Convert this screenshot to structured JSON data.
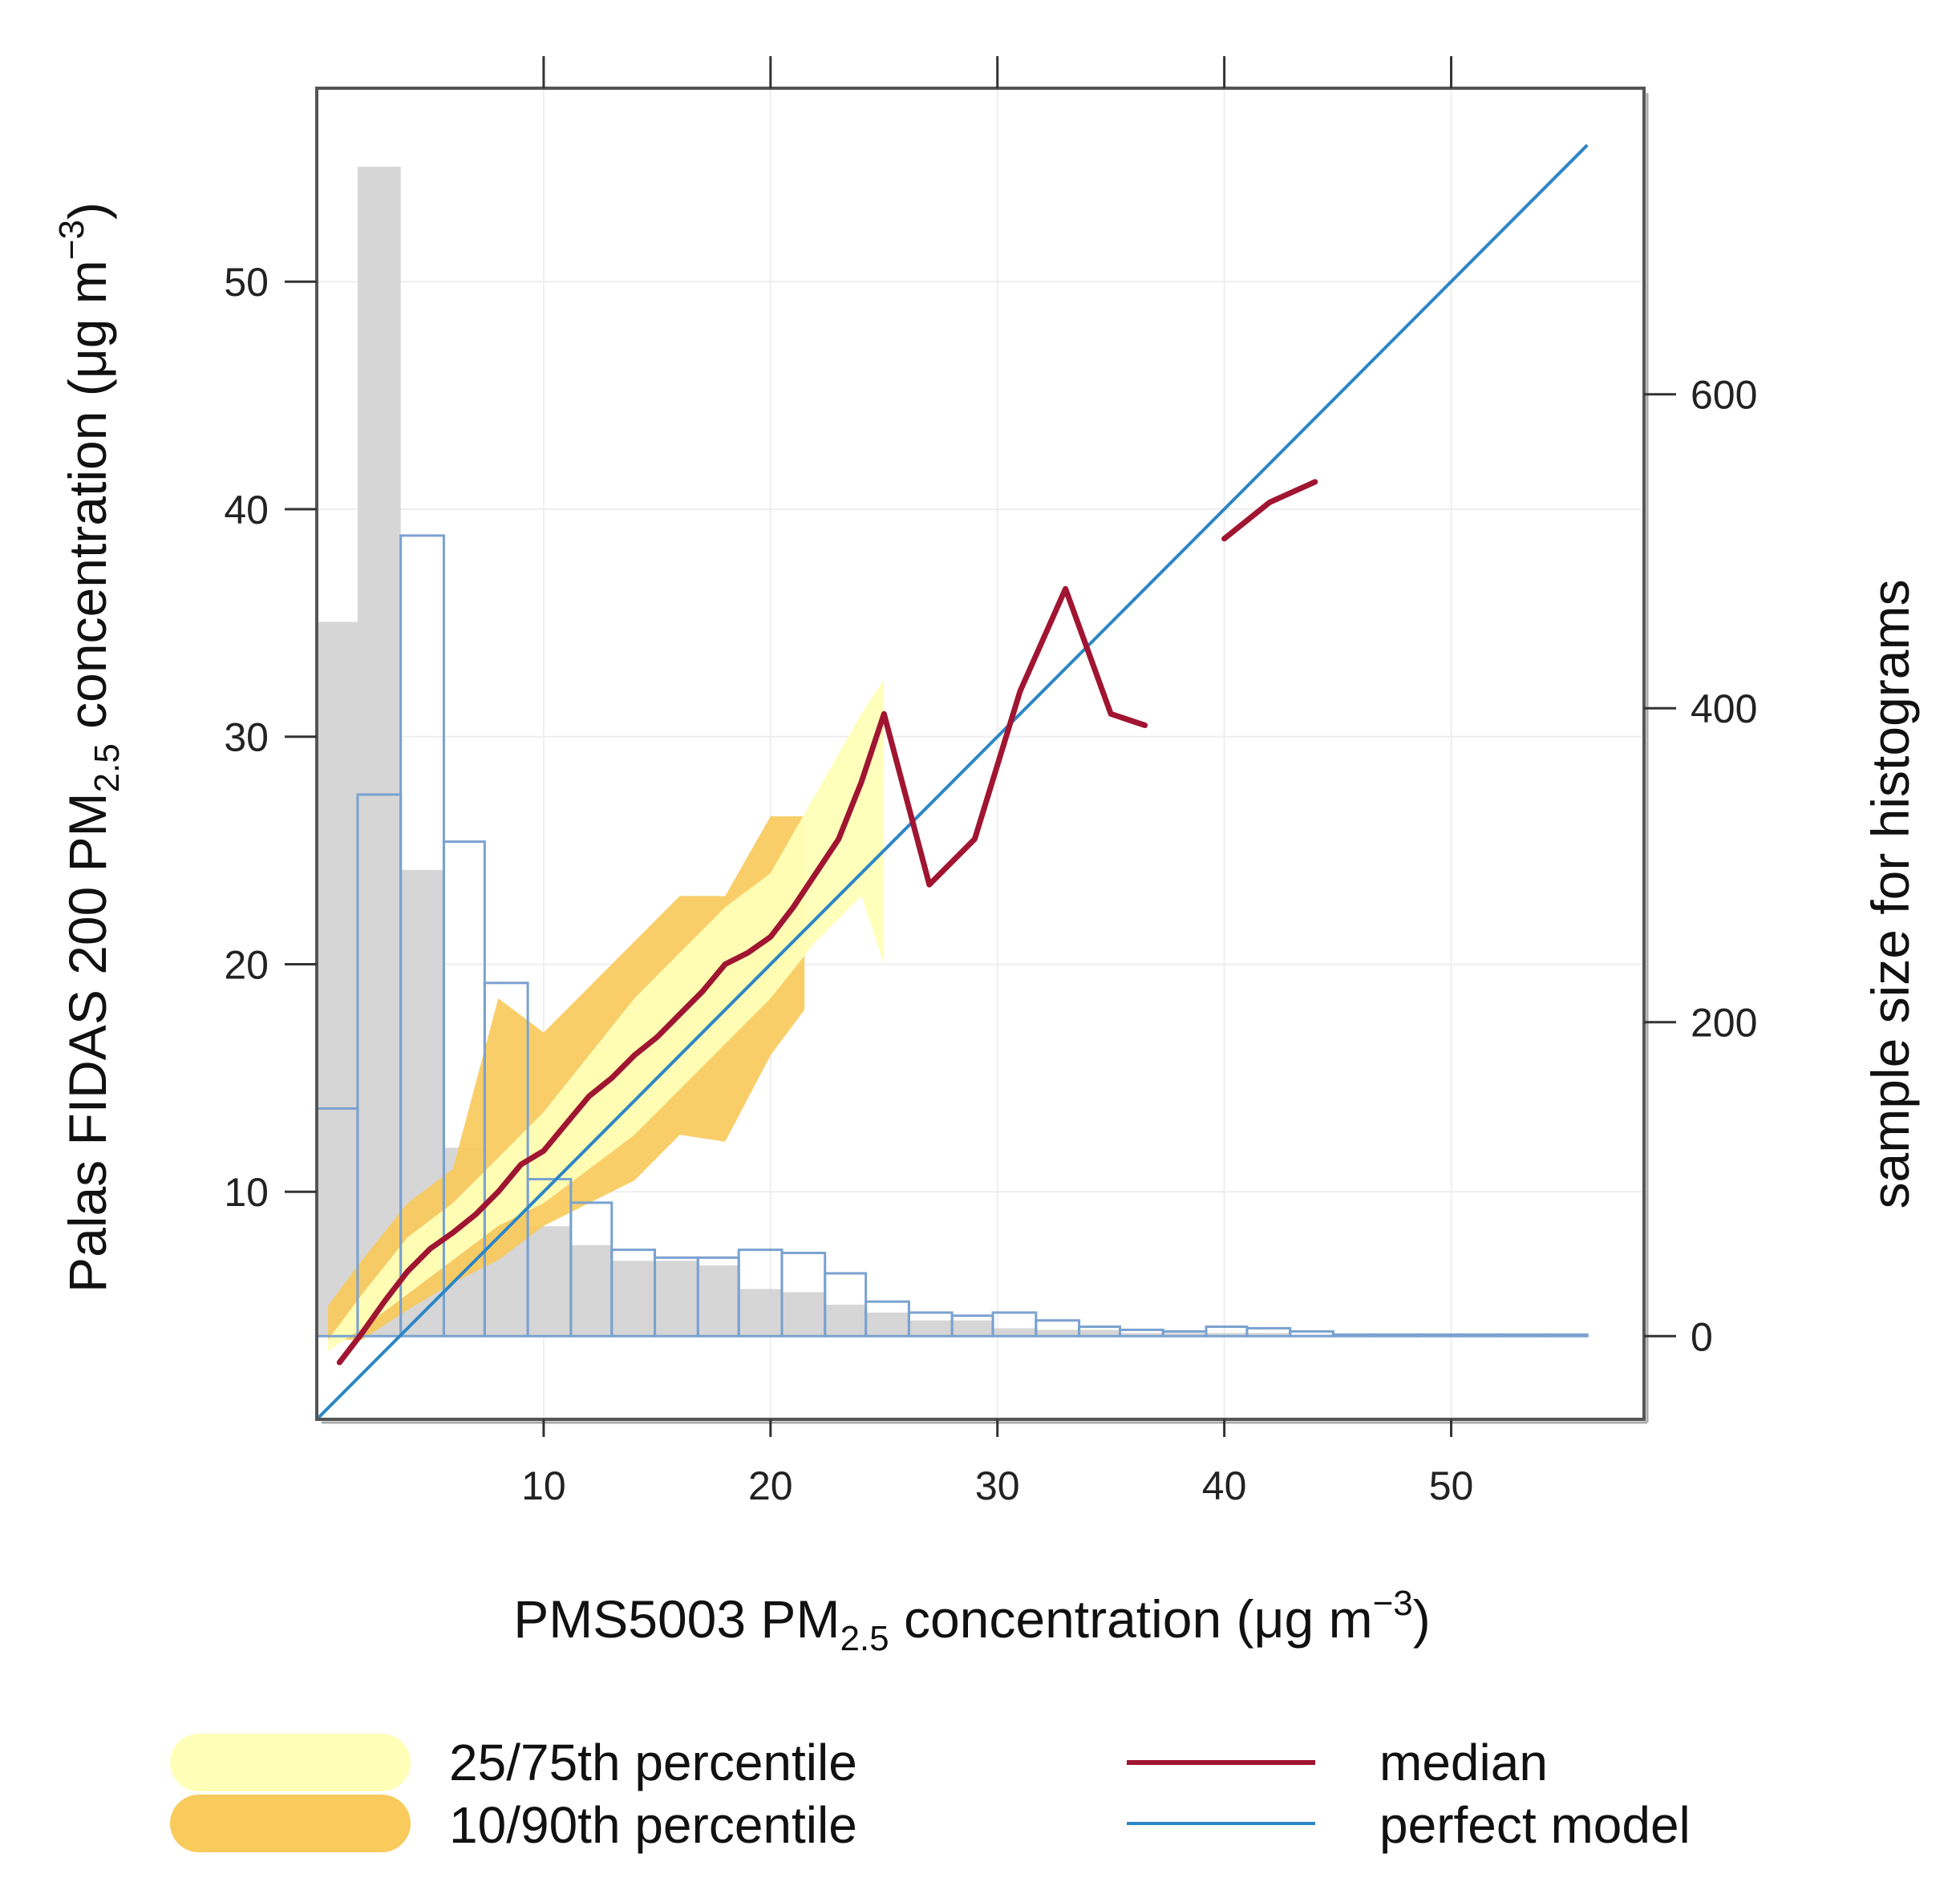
{
  "chart_data": {
    "type": "conditional-quantile",
    "x_axis": {
      "label_pre": "PMS5003 PM",
      "label_sub": "2.5",
      "label_post": " concentration (μg m",
      "label_sup": "−3",
      "label_end": ")",
      "range": [
        0,
        58.5
      ],
      "ticks": [
        10,
        20,
        30,
        40,
        50
      ],
      "tick_labels": [
        "10",
        "20",
        "30",
        "40",
        "50"
      ]
    },
    "y_axis": {
      "label_pre": "Palas FIDAS 200 PM",
      "label_sub": "2.5",
      "label_post": " concentration (μg m",
      "label_sup": "−3",
      "label_end": ")",
      "range": [
        0,
        58.5
      ],
      "ticks": [
        10,
        20,
        30,
        40,
        50
      ],
      "tick_labels": [
        "10",
        "20",
        "30",
        "40",
        "50"
      ]
    },
    "y2_axis": {
      "label": "sample size for histograms",
      "range": [
        -53,
        795
      ],
      "ticks": [
        0,
        200,
        400,
        600
      ],
      "tick_labels": [
        "0",
        "200",
        "400",
        "600"
      ]
    },
    "grid": true,
    "median": [
      {
        "x": [
          1,
          2,
          3,
          4,
          5,
          6,
          7,
          8,
          9,
          10,
          11,
          12,
          13,
          14,
          15,
          16,
          17,
          18,
          19,
          20,
          21,
          22,
          23,
          24,
          25,
          27,
          29,
          31,
          33,
          35,
          36.5
        ],
        "y": [
          2.5,
          3.8,
          5.2,
          6.5,
          7.5,
          8.2,
          9.0,
          10.0,
          11.2,
          11.8,
          13.0,
          14.2,
          15.0,
          16.0,
          16.8,
          17.8,
          18.8,
          20.0,
          20.5,
          21.2,
          22.5,
          24.0,
          25.5,
          28.0,
          31.0,
          23.5,
          25.5,
          32.0,
          36.5,
          31.0,
          30.5
        ]
      },
      {
        "x": [
          40,
          42,
          44
        ],
        "y": [
          38.7,
          40.3,
          41.2
        ]
      }
    ],
    "perfect_model": {
      "x": [
        0,
        56
      ],
      "y": [
        0,
        56
      ]
    },
    "band_10_90": {
      "x": [
        0.5,
        2,
        4,
        6,
        8,
        10,
        12,
        14,
        16,
        18,
        20,
        21.5
      ],
      "lower": [
        3.5,
        3.5,
        4.8,
        6.0,
        7.0,
        8.5,
        9.5,
        10.5,
        12.5,
        12.2,
        16.0,
        18.0
      ],
      "upper": [
        5.0,
        7.0,
        9.5,
        11.0,
        18.5,
        17.0,
        19.0,
        21.0,
        23.0,
        23.0,
        26.5,
        26.5
      ]
    },
    "band_25_75": {
      "x": [
        0.5,
        2,
        4,
        6,
        8,
        10,
        12,
        14,
        16,
        18,
        20,
        22,
        24,
        25
      ],
      "lower": [
        3.0,
        4.0,
        5.5,
        7.0,
        8.5,
        9.5,
        11.0,
        12.5,
        14.5,
        16.5,
        18.5,
        21.0,
        23.0,
        20.0
      ],
      "upper": [
        3.5,
        5.5,
        8.0,
        9.5,
        11.5,
        13.5,
        16.0,
        18.5,
        20.5,
        22.5,
        24.0,
        27.5,
        31.0,
        32.5
      ]
    },
    "histogram_bin_edges": [
      0,
      1.8,
      3.7,
      5.6,
      7.4,
      9.3,
      11.2,
      13.0,
      14.9,
      16.8,
      18.6,
      20.5,
      22.4,
      24.2,
      26.1,
      28.0,
      29.8,
      31.7,
      33.6,
      35.4,
      37.3,
      39.2,
      41.0,
      42.9,
      44.8,
      46.6,
      48.5,
      50.4,
      52.2,
      54.1,
      56.0
    ],
    "histogram_observed_counts": [
      455,
      745,
      297,
      120,
      78,
      70,
      58,
      48,
      48,
      45,
      30,
      28,
      20,
      15,
      10,
      10,
      5,
      4,
      4,
      2,
      2,
      2,
      2,
      1,
      1,
      1,
      1,
      1,
      1,
      1
    ],
    "histogram_predicted_counts": [
      145,
      345,
      510,
      315,
      225,
      100,
      85,
      55,
      50,
      50,
      55,
      53,
      40,
      22,
      15,
      13,
      15,
      10,
      6,
      4,
      3,
      6,
      5,
      3,
      1,
      1,
      1,
      1,
      1,
      1
    ],
    "legend": [
      {
        "key": "band_25_75",
        "label": "25/75th percentile",
        "color": "#ffffb8"
      },
      {
        "key": "band_10_90",
        "label": "10/90th percentile",
        "color": "#f9ca5c"
      },
      {
        "key": "median",
        "label": "median",
        "color": "#a01531"
      },
      {
        "key": "perfect_model",
        "label": "perfect model",
        "color": "#2c86c6"
      }
    ],
    "colors": {
      "observed_histogram_fill": "#d6d6d6",
      "predicted_histogram_stroke": "#7aa2d0",
      "grid": "#eeeeee",
      "frame": "#555555"
    }
  }
}
